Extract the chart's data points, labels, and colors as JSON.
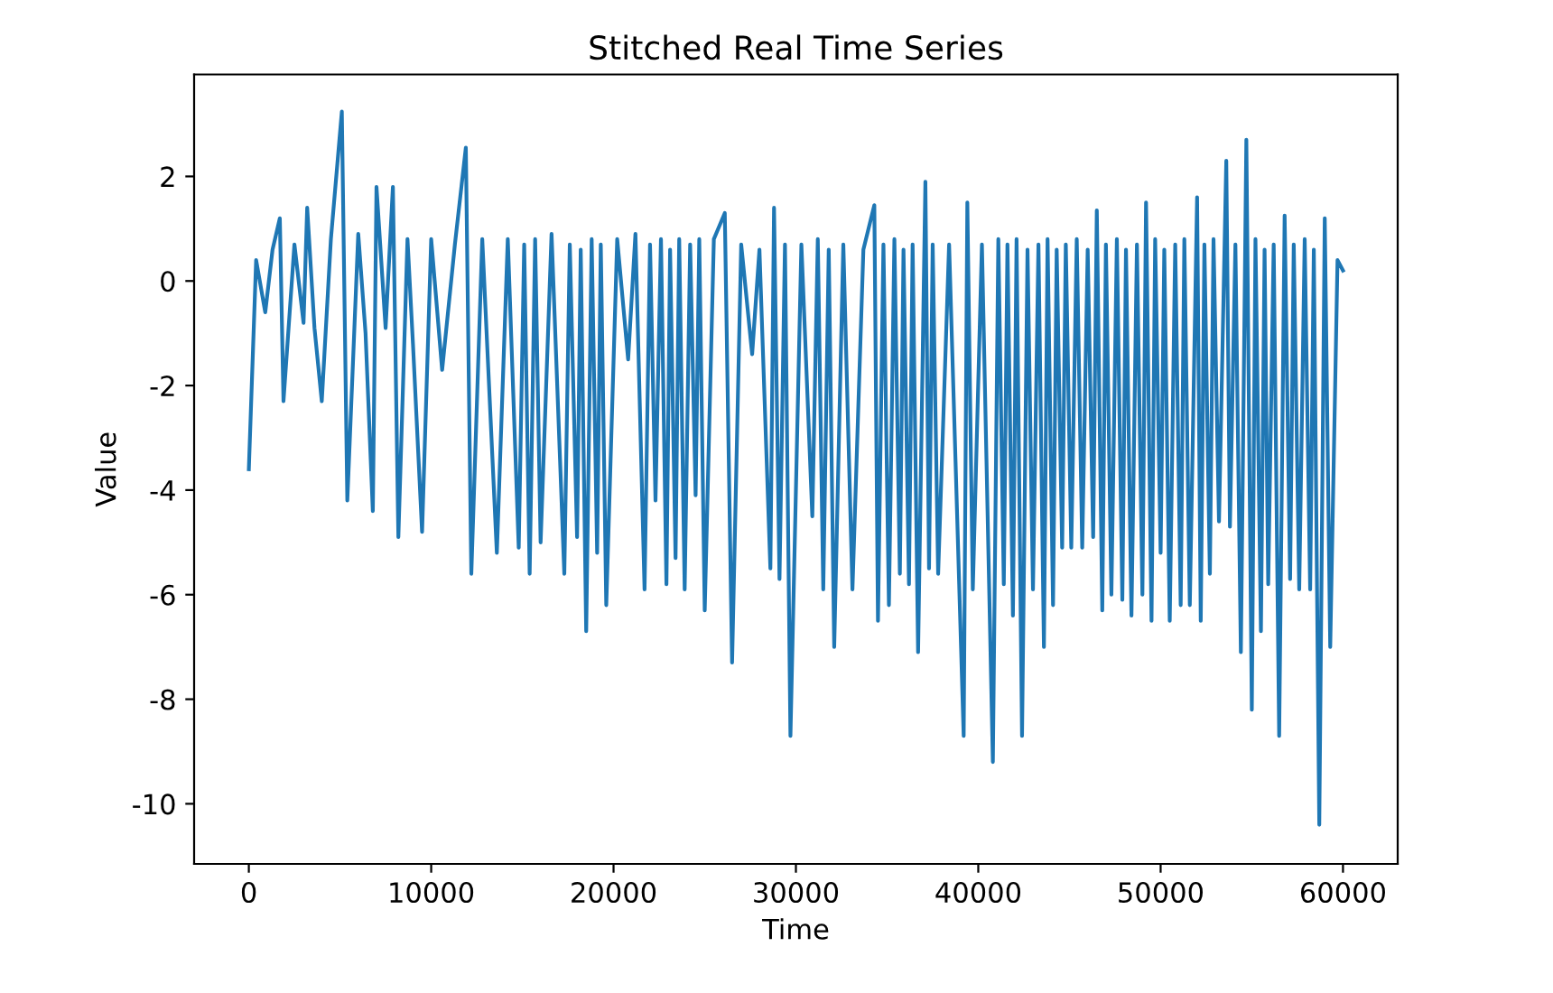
{
  "chart_data": {
    "type": "line",
    "title": "Stitched Real Time Series",
    "xlabel": "Time",
    "ylabel": "Value",
    "xlim": [
      -3000,
      63000
    ],
    "ylim": [
      -11.15,
      3.95
    ],
    "xticks": [
      0,
      10000,
      20000,
      30000,
      40000,
      50000,
      60000
    ],
    "yticks": [
      -10,
      -8,
      -6,
      -4,
      -2,
      0,
      2
    ],
    "grid": false,
    "legend": false,
    "series": [
      {
        "color": "#1f77b4",
        "x": [
          0,
          400,
          900,
          1300,
          1700,
          1900,
          2500,
          3000,
          3200,
          3600,
          4000,
          4500,
          5100,
          5400,
          6000,
          6400,
          6800,
          7000,
          7500,
          7900,
          8200,
          8700,
          9000,
          9500,
          10000,
          10600,
          11300,
          11900,
          12200,
          12800,
          13600,
          14200,
          14800,
          15100,
          15400,
          15700,
          16000,
          16600,
          17300,
          17600,
          18000,
          18200,
          18500,
          18800,
          19100,
          19300,
          19600,
          20200,
          20800,
          21200,
          21700,
          22000,
          22300,
          22600,
          22900,
          23100,
          23400,
          23600,
          23900,
          24200,
          24500,
          24700,
          25000,
          25500,
          26100,
          26500,
          27000,
          27600,
          28000,
          28600,
          28800,
          29100,
          29400,
          29700,
          30300,
          30900,
          31200,
          31500,
          31800,
          32100,
          32600,
          33100,
          33700,
          34300,
          34500,
          34800,
          35100,
          35400,
          35700,
          35900,
          36200,
          36400,
          36700,
          37100,
          37300,
          37500,
          37800,
          38400,
          39200,
          39400,
          39700,
          40200,
          40800,
          41100,
          41400,
          41600,
          41900,
          42100,
          42400,
          42700,
          43000,
          43300,
          43600,
          43800,
          44100,
          44300,
          44600,
          44800,
          45100,
          45400,
          45700,
          46000,
          46300,
          46500,
          46800,
          47000,
          47300,
          47600,
          47900,
          48100,
          48400,
          48700,
          49000,
          49200,
          49500,
          49700,
          50000,
          50200,
          50500,
          50800,
          51100,
          51300,
          51600,
          52000,
          52200,
          52400,
          52700,
          52900,
          53200,
          53600,
          53800,
          54100,
          54400,
          54700,
          55000,
          55200,
          55500,
          55700,
          55900,
          56200,
          56500,
          56800,
          57100,
          57300,
          57600,
          57900,
          58200,
          58400,
          58700,
          59000,
          59300,
          59700,
          60000
        ],
        "values": [
          -3.6,
          0.4,
          -0.6,
          0.6,
          1.2,
          -2.3,
          0.7,
          -0.8,
          1.4,
          -0.9,
          -2.3,
          0.8,
          3.24,
          -4.2,
          0.9,
          -1.0,
          -4.4,
          1.8,
          -0.9,
          1.8,
          -4.9,
          0.8,
          -1.2,
          -4.8,
          0.8,
          -1.7,
          0.7,
          2.55,
          -5.6,
          0.8,
          -5.2,
          0.8,
          -5.1,
          0.7,
          -5.6,
          0.8,
          -5.0,
          0.9,
          -5.6,
          0.7,
          -4.9,
          0.6,
          -6.7,
          0.8,
          -5.2,
          0.7,
          -6.2,
          0.8,
          -1.5,
          0.9,
          -5.9,
          0.7,
          -4.2,
          0.8,
          -5.8,
          0.6,
          -5.3,
          0.8,
          -5.9,
          0.7,
          -4.1,
          0.8,
          -6.3,
          0.8,
          1.3,
          -7.3,
          0.7,
          -1.4,
          0.6,
          -5.5,
          1.4,
          -5.7,
          0.7,
          -8.7,
          0.7,
          -4.5,
          0.8,
          -5.9,
          0.6,
          -7.0,
          0.7,
          -5.9,
          0.6,
          1.45,
          -6.5,
          0.7,
          -6.2,
          0.8,
          -5.6,
          0.6,
          -5.8,
          0.7,
          -7.1,
          1.9,
          -5.5,
          0.7,
          -5.6,
          0.7,
          -8.7,
          1.5,
          -5.9,
          0.7,
          -9.2,
          0.8,
          -5.8,
          0.7,
          -6.4,
          0.8,
          -8.7,
          0.6,
          -5.9,
          0.7,
          -7.0,
          0.8,
          -6.2,
          0.6,
          -5.1,
          0.7,
          -5.1,
          0.8,
          -5.1,
          0.6,
          -4.9,
          1.35,
          -6.3,
          0.7,
          -6.0,
          0.8,
          -6.1,
          0.6,
          -6.4,
          0.7,
          -6.0,
          1.5,
          -6.5,
          0.8,
          -5.2,
          0.6,
          -6.5,
          0.7,
          -6.2,
          0.8,
          -6.2,
          1.6,
          -6.5,
          0.7,
          -5.6,
          0.8,
          -4.6,
          2.3,
          -4.7,
          0.7,
          -7.1,
          2.7,
          -8.2,
          0.8,
          -6.7,
          0.6,
          -5.8,
          0.7,
          -8.7,
          1.25,
          -5.7,
          0.7,
          -5.9,
          0.8,
          -5.9,
          0.6,
          -10.4,
          1.2,
          -7.0,
          0.4,
          0.2
        ]
      }
    ]
  }
}
